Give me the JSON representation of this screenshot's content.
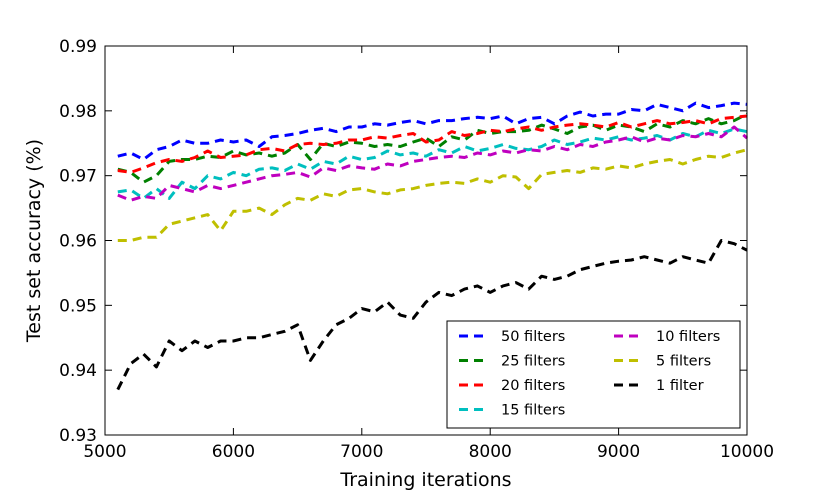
{
  "chart_data": {
    "type": "line",
    "title": "",
    "xlabel": "Training iterations",
    "ylabel": "Test set accuracy (%)",
    "xlim": [
      5000,
      10000
    ],
    "ylim": [
      0.93,
      0.99
    ],
    "xticks": [
      5000,
      6000,
      7000,
      8000,
      9000,
      10000
    ],
    "yticks": [
      0.93,
      0.94,
      0.95,
      0.96,
      0.97,
      0.98,
      0.99
    ],
    "xtick_labels": [
      "5000",
      "6000",
      "7000",
      "8000",
      "9000",
      "10000"
    ],
    "ytick_labels": [
      "0.93",
      "0.94",
      "0.95",
      "0.96",
      "0.97",
      "0.98",
      "0.99"
    ],
    "grid": false,
    "legend_position": "lower-right",
    "x": [
      5100,
      5200,
      5300,
      5400,
      5500,
      5600,
      5700,
      5800,
      5900,
      6000,
      6100,
      6200,
      6300,
      6400,
      6500,
      6600,
      6700,
      6800,
      6900,
      7000,
      7100,
      7200,
      7300,
      7400,
      7500,
      7600,
      7700,
      7800,
      7900,
      8000,
      8100,
      8200,
      8300,
      8400,
      8500,
      8600,
      8700,
      8800,
      8900,
      9000,
      9100,
      9200,
      9300,
      9400,
      9500,
      9600,
      9700,
      9800,
      9900,
      10000
    ],
    "series": [
      {
        "name": "50 filters",
        "color": "#0000ff",
        "values": [
          0.973,
          0.9735,
          0.9725,
          0.974,
          0.9745,
          0.9755,
          0.975,
          0.975,
          0.9755,
          0.9752,
          0.9755,
          0.9745,
          0.976,
          0.9762,
          0.9765,
          0.977,
          0.9773,
          0.9768,
          0.9775,
          0.9775,
          0.978,
          0.9778,
          0.9782,
          0.9785,
          0.978,
          0.9785,
          0.9785,
          0.9788,
          0.979,
          0.9788,
          0.9792,
          0.978,
          0.9788,
          0.979,
          0.978,
          0.9792,
          0.9798,
          0.9792,
          0.9795,
          0.9795,
          0.9802,
          0.98,
          0.981,
          0.9805,
          0.98,
          0.9812,
          0.9805,
          0.9808,
          0.9812,
          0.981
        ]
      },
      {
        "name": "25 filters",
        "color": "#008000",
        "values": [
          0.971,
          0.9705,
          0.969,
          0.97,
          0.9722,
          0.9725,
          0.9725,
          0.973,
          0.9728,
          0.9738,
          0.9732,
          0.9735,
          0.973,
          0.9735,
          0.9748,
          0.9725,
          0.975,
          0.9745,
          0.9752,
          0.975,
          0.9745,
          0.9748,
          0.9745,
          0.9752,
          0.9758,
          0.9745,
          0.976,
          0.9755,
          0.977,
          0.9765,
          0.9768,
          0.9768,
          0.977,
          0.9778,
          0.9772,
          0.9765,
          0.9775,
          0.9778,
          0.977,
          0.9778,
          0.9775,
          0.9768,
          0.978,
          0.9775,
          0.9785,
          0.978,
          0.9788,
          0.978,
          0.9785,
          0.9795
        ]
      },
      {
        "name": "20 filters",
        "color": "#ff0000",
        "values": [
          0.9708,
          0.9705,
          0.9712,
          0.972,
          0.9725,
          0.9722,
          0.9728,
          0.9738,
          0.9728,
          0.973,
          0.9732,
          0.974,
          0.9742,
          0.9738,
          0.9748,
          0.975,
          0.9748,
          0.975,
          0.9755,
          0.9755,
          0.976,
          0.9758,
          0.9762,
          0.9765,
          0.9752,
          0.9755,
          0.9768,
          0.9762,
          0.9765,
          0.977,
          0.9768,
          0.9772,
          0.9775,
          0.977,
          0.9775,
          0.9778,
          0.978,
          0.9778,
          0.9775,
          0.9782,
          0.9775,
          0.978,
          0.9785,
          0.978,
          0.9782,
          0.9785,
          0.978,
          0.9788,
          0.979,
          0.9792
        ]
      },
      {
        "name": "15 filters",
        "color": "#00bfbf",
        "values": [
          0.9675,
          0.9678,
          0.9665,
          0.968,
          0.9665,
          0.969,
          0.968,
          0.97,
          0.9695,
          0.9705,
          0.97,
          0.971,
          0.9712,
          0.9708,
          0.9718,
          0.971,
          0.9722,
          0.9718,
          0.973,
          0.9725,
          0.9728,
          0.9738,
          0.9732,
          0.9735,
          0.973,
          0.974,
          0.9735,
          0.9745,
          0.9738,
          0.9742,
          0.9748,
          0.9742,
          0.974,
          0.9745,
          0.9755,
          0.9748,
          0.9752,
          0.9758,
          0.9755,
          0.976,
          0.9755,
          0.9758,
          0.9762,
          0.9755,
          0.9765,
          0.976,
          0.977,
          0.9765,
          0.9772,
          0.9768
        ]
      },
      {
        "name": "10 filters",
        "color": "#bf00bf",
        "values": [
          0.967,
          0.9662,
          0.9668,
          0.9665,
          0.9685,
          0.968,
          0.9675,
          0.9685,
          0.968,
          0.9685,
          0.969,
          0.9695,
          0.97,
          0.9702,
          0.9705,
          0.9698,
          0.9712,
          0.9708,
          0.9715,
          0.9712,
          0.971,
          0.9718,
          0.9715,
          0.9722,
          0.9725,
          0.9728,
          0.973,
          0.9728,
          0.9735,
          0.9732,
          0.9738,
          0.9735,
          0.974,
          0.9738,
          0.9745,
          0.974,
          0.9748,
          0.9745,
          0.9752,
          0.9755,
          0.976,
          0.9752,
          0.9758,
          0.9755,
          0.9762,
          0.976,
          0.9765,
          0.976,
          0.9775,
          0.9758
        ]
      },
      {
        "name": "5 filters",
        "color": "#bfbf00",
        "values": [
          0.96,
          0.96,
          0.9605,
          0.9605,
          0.9625,
          0.963,
          0.9635,
          0.964,
          0.9615,
          0.9645,
          0.9645,
          0.965,
          0.964,
          0.9655,
          0.9665,
          0.9662,
          0.9672,
          0.9668,
          0.9678,
          0.968,
          0.9675,
          0.9672,
          0.9678,
          0.968,
          0.9685,
          0.9688,
          0.969,
          0.9688,
          0.9695,
          0.969,
          0.97,
          0.9698,
          0.968,
          0.9702,
          0.9705,
          0.9708,
          0.9705,
          0.9712,
          0.971,
          0.9715,
          0.9712,
          0.9718,
          0.9722,
          0.9725,
          0.9718,
          0.9725,
          0.973,
          0.9728,
          0.9735,
          0.974
        ]
      },
      {
        "name": "1 filter",
        "color": "#000000",
        "values": [
          0.937,
          0.941,
          0.9425,
          0.9405,
          0.9445,
          0.943,
          0.9445,
          0.9435,
          0.9445,
          0.9445,
          0.945,
          0.945,
          0.9455,
          0.946,
          0.947,
          0.9415,
          0.9445,
          0.947,
          0.948,
          0.9495,
          0.949,
          0.9505,
          0.9485,
          0.948,
          0.9505,
          0.952,
          0.9515,
          0.9525,
          0.953,
          0.952,
          0.953,
          0.9535,
          0.9525,
          0.9545,
          0.954,
          0.9545,
          0.9555,
          0.956,
          0.9565,
          0.9568,
          0.957,
          0.9575,
          0.957,
          0.9565,
          0.9575,
          0.957,
          0.9565,
          0.96,
          0.9595,
          0.9585
        ]
      }
    ]
  }
}
